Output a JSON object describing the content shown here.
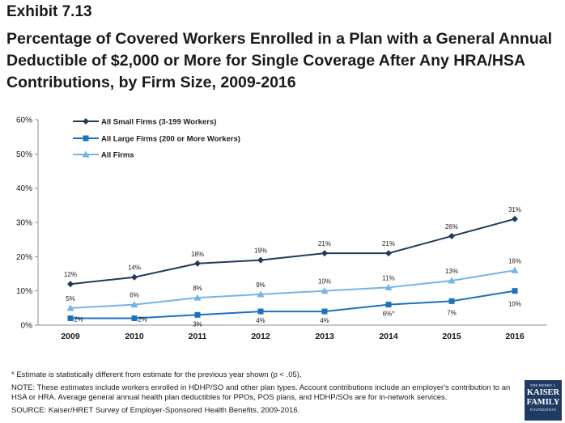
{
  "header": {
    "exhibit": "Exhibit 7.13",
    "title": "Percentage of Covered Workers Enrolled in a Plan with a General Annual Deductible of $2,000 or More for Single Coverage After Any HRA/HSA Contributions, by Firm Size, 2009-2016"
  },
  "chart_data": {
    "type": "line",
    "categories": [
      "2009",
      "2010",
      "2011",
      "2012",
      "2013",
      "2014",
      "2015",
      "2016"
    ],
    "ylim": [
      0,
      60
    ],
    "yticks": [
      "0%",
      "10%",
      "20%",
      "30%",
      "40%",
      "50%",
      "60%"
    ],
    "grid": false,
    "legend_position": "top-left",
    "series": [
      {
        "name": "All Small Firms (3-199 Workers)",
        "values": [
          12,
          14,
          18,
          19,
          21,
          21,
          26,
          31
        ],
        "labels": [
          "12%",
          "14%",
          "18%",
          "19%",
          "21%",
          "21%",
          "26%",
          "31%"
        ],
        "color": "#1f3b5c",
        "marker": "diamond"
      },
      {
        "name": "All Large Firms (200 or More Workers)",
        "values": [
          2,
          2,
          3,
          4,
          4,
          6,
          7,
          10
        ],
        "labels": [
          "2%",
          "2%",
          "3%",
          "4%",
          "4%",
          "6%*",
          "7%",
          "10%"
        ],
        "color": "#1b72be",
        "marker": "square"
      },
      {
        "name": "All Firms",
        "values": [
          5,
          6,
          8,
          9,
          10,
          11,
          13,
          16
        ],
        "labels": [
          "5%",
          "6%",
          "8%",
          "9%",
          "10%",
          "11%",
          "13%",
          "16%"
        ],
        "color": "#74b4e6",
        "marker": "triangle"
      }
    ]
  },
  "footnotes": {
    "significance": "* Estimate is statistically different from estimate for the previous year shown (p < .05).",
    "note": "NOTE:  These estimates include workers enrolled in HDHP/SO and other plan types. Account contributions include an employer's contribution to an HSA or HRA. Average general annual health plan deductibles for PPOs, POS plans, and HDHP/SOs are for in-network services.",
    "source": "SOURCE:  Kaiser/HRET Survey of Employer-Sponsored Health Benefits, 2009-2016."
  },
  "logo": {
    "line1": "THE HENRY J.",
    "line2": "KAISER",
    "line3": "FAMILY",
    "line4": "FOUNDATION"
  }
}
